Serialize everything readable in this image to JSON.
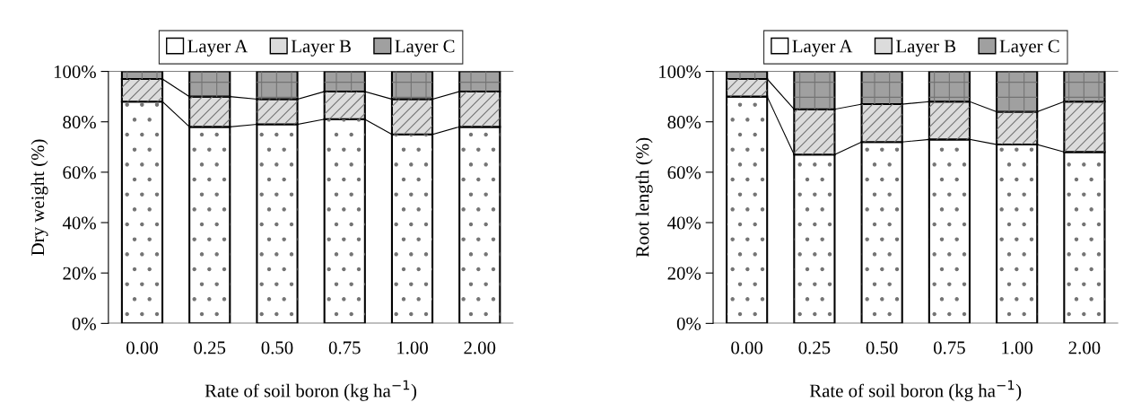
{
  "chart_data": [
    {
      "type": "bar",
      "stacked": true,
      "categories": [
        "0.00",
        "0.25",
        "0.50",
        "0.75",
        "1.00",
        "2.00"
      ],
      "xlabel": "Rate of soil boron (kg ha$^{−1}$)",
      "ylabel": "Dry weight (%)",
      "ylim": [
        0,
        100
      ],
      "yticks": [
        {
          "value": 0,
          "label": "0%"
        },
        {
          "value": 20,
          "label": "20%"
        },
        {
          "value": 40,
          "label": "40%"
        },
        {
          "value": 60,
          "label": "60%"
        },
        {
          "value": 80,
          "label": "80%"
        },
        {
          "value": 100,
          "label": "100%"
        }
      ],
      "legend": "top",
      "grid": false,
      "series": [
        {
          "name": "Layer A",
          "color": "#ffffff",
          "values": [
            88,
            78,
            79,
            81,
            75,
            78
          ]
        },
        {
          "name": "Layer B",
          "color": "#dcdcdc",
          "values": [
            9,
            12,
            10,
            11,
            14,
            14
          ]
        },
        {
          "name": "Layer C",
          "color": "#a0a0a0",
          "values": [
            3,
            10,
            11,
            8,
            11,
            8
          ]
        }
      ]
    },
    {
      "type": "bar",
      "stacked": true,
      "categories": [
        "0.00",
        "0.25",
        "0.50",
        "0.75",
        "1.00",
        "2.00"
      ],
      "xlabel": "Rate of soil boron (kg ha$^{−1}$)",
      "ylabel": "Root length (%)",
      "ylim": [
        0,
        100
      ],
      "yticks": [
        {
          "value": 0,
          "label": "0%"
        },
        {
          "value": 20,
          "label": "20%"
        },
        {
          "value": 40,
          "label": "40%"
        },
        {
          "value": 60,
          "label": "60%"
        },
        {
          "value": 80,
          "label": "80%"
        },
        {
          "value": 100,
          "label": "100%"
        }
      ],
      "legend": "top",
      "grid": false,
      "series": [
        {
          "name": "Layer A",
          "color": "#ffffff",
          "values": [
            90,
            67,
            72,
            73,
            71,
            68
          ]
        },
        {
          "name": "Layer B",
          "color": "#dcdcdc",
          "values": [
            7,
            18,
            15,
            15,
            13,
            20
          ]
        },
        {
          "name": "Layer C",
          "color": "#a0a0a0",
          "values": [
            3,
            15,
            13,
            12,
            16,
            12
          ]
        }
      ]
    }
  ]
}
